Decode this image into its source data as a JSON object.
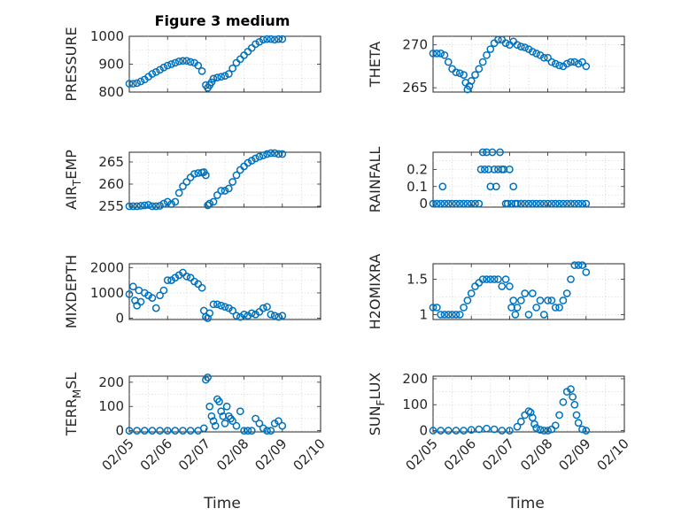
{
  "chart_data": [
    {
      "type": "scatter",
      "title": "Figure 3 medium",
      "ylabel_main": "PRESSURE",
      "ylabel_sub": "",
      "xlabel": "",
      "ylim": [
        800,
        1000
      ],
      "yticks": [
        800,
        900,
        1000
      ],
      "ytick_labels": [
        "800",
        "900",
        "1000"
      ],
      "xlim": [
        0,
        5
      ],
      "x": [
        0,
        0.1,
        0.2,
        0.3,
        0.4,
        0.5,
        0.6,
        0.7,
        0.8,
        0.9,
        1.0,
        1.1,
        1.2,
        1.3,
        1.4,
        1.5,
        1.6,
        1.7,
        1.8,
        1.9,
        2.0,
        2.05,
        2.1,
        2.15,
        2.2,
        2.3,
        2.4,
        2.5,
        2.6,
        2.7,
        2.8,
        2.9,
        3.0,
        3.1,
        3.2,
        3.3,
        3.4,
        3.5,
        3.6,
        3.7,
        3.8,
        3.9,
        4.0
      ],
      "y": [
        830,
        830,
        832,
        838,
        845,
        855,
        865,
        872,
        880,
        888,
        895,
        900,
        905,
        910,
        912,
        912,
        908,
        905,
        895,
        875,
        825,
        815,
        825,
        835,
        848,
        852,
        855,
        858,
        865,
        885,
        905,
        918,
        932,
        945,
        958,
        972,
        980,
        988,
        990,
        990,
        988,
        990,
        990
      ],
      "series": [
        {
          "values": []
        }
      ]
    },
    {
      "type": "scatter",
      "title": "",
      "ylabel_main": "THETA",
      "ylabel_sub": "",
      "xlabel": "",
      "ylim": [
        264.5,
        271
      ],
      "yticks": [
        265,
        270
      ],
      "ytick_labels": [
        "265",
        "270"
      ],
      "xlim": [
        0,
        5
      ],
      "x": [
        0,
        0.1,
        0.2,
        0.3,
        0.4,
        0.5,
        0.6,
        0.7,
        0.8,
        0.85,
        0.9,
        0.95,
        1.0,
        1.1,
        1.2,
        1.3,
        1.4,
        1.5,
        1.6,
        1.7,
        1.8,
        1.9,
        2.0,
        2.1,
        2.2,
        2.3,
        2.4,
        2.5,
        2.6,
        2.7,
        2.8,
        2.9,
        3.0,
        3.1,
        3.2,
        3.3,
        3.4,
        3.5,
        3.6,
        3.7,
        3.8,
        3.9,
        4.0
      ],
      "y": [
        269,
        269,
        269,
        268.8,
        268,
        267.2,
        266.8,
        266.7,
        266.5,
        265.6,
        264.8,
        265.2,
        265.8,
        266.5,
        267.2,
        268,
        268.8,
        269.5,
        270.2,
        270.6,
        270.6,
        270.2,
        270,
        270.4,
        270,
        269.8,
        269.7,
        269.5,
        269.2,
        269,
        268.8,
        268.5,
        268.5,
        268,
        267.8,
        267.6,
        267.5,
        267.8,
        268,
        268,
        267.8,
        268,
        267.5
      ],
      "series": [
        {
          "values": []
        }
      ]
    },
    {
      "type": "scatter",
      "title": "",
      "ylabel_main": "AIR",
      "ylabel_sub": "T",
      "ylabel_tail": "EMP",
      "xlabel": "",
      "ylim": [
        254.8,
        267.2
      ],
      "yticks": [
        255,
        260,
        265
      ],
      "ytick_labels": [
        "255",
        "260",
        "265"
      ],
      "xlim": [
        0,
        5
      ],
      "x": [
        0,
        0.1,
        0.2,
        0.3,
        0.4,
        0.5,
        0.6,
        0.7,
        0.8,
        0.9,
        1.0,
        1.1,
        1.2,
        1.3,
        1.4,
        1.5,
        1.6,
        1.7,
        1.8,
        1.9,
        1.95,
        2.0,
        2.05,
        2.1,
        2.2,
        2.3,
        2.4,
        2.5,
        2.6,
        2.7,
        2.8,
        2.9,
        3.0,
        3.1,
        3.2,
        3.3,
        3.4,
        3.5,
        3.6,
        3.7,
        3.8,
        3.9,
        4.0
      ],
      "y": [
        255,
        255,
        255,
        255.1,
        255.2,
        255.3,
        255,
        255,
        255.1,
        255.6,
        256,
        255.5,
        256,
        258,
        259.5,
        260.5,
        261.5,
        262.3,
        262.5,
        262.6,
        262.7,
        262,
        255.2,
        255.6,
        256,
        257.5,
        258.5,
        258.5,
        259,
        260.5,
        262,
        263.2,
        264,
        264.8,
        265.3,
        265.8,
        266.2,
        266.5,
        266.8,
        267,
        267,
        266.8,
        266.8
      ],
      "series": [
        {
          "values": []
        }
      ]
    },
    {
      "type": "scatter",
      "title": "",
      "ylabel_main": "RAINFALL",
      "ylabel_sub": "",
      "xlabel": "",
      "ylim": [
        -0.02,
        0.3
      ],
      "yticks": [
        0,
        0.1,
        0.2
      ],
      "ytick_labels": [
        "0",
        "0.1",
        "0.2"
      ],
      "xlim": [
        0,
        5
      ],
      "x": [
        0,
        0.1,
        0.2,
        0.25,
        0.3,
        0.4,
        0.5,
        0.6,
        0.7,
        0.8,
        0.9,
        1.0,
        1.1,
        1.2,
        1.25,
        1.3,
        1.35,
        1.4,
        1.45,
        1.5,
        1.55,
        1.6,
        1.65,
        1.7,
        1.75,
        1.8,
        1.85,
        1.9,
        1.95,
        2.0,
        2.05,
        2.1,
        2.15,
        2.2,
        2.3,
        2.4,
        2.5,
        2.6,
        2.7,
        2.8,
        2.9,
        3.0,
        3.1,
        3.2,
        3.3,
        3.4,
        3.5,
        3.6,
        3.7,
        3.8,
        3.9,
        4.0
      ],
      "y": [
        0,
        0,
        0,
        0.1,
        0,
        0,
        0,
        0,
        0,
        0,
        0,
        0,
        0,
        0,
        0.2,
        0.3,
        0.2,
        0.3,
        0.2,
        0.1,
        0.3,
        0.2,
        0.1,
        0.2,
        0.3,
        0.2,
        0.2,
        0,
        0,
        0.2,
        0,
        0.1,
        0,
        0,
        0,
        0,
        0,
        0,
        0,
        0,
        0,
        0,
        0,
        0,
        0,
        0,
        0,
        0,
        0,
        0,
        0,
        0
      ],
      "series": [
        {
          "values": []
        }
      ]
    },
    {
      "type": "scatter",
      "title": "",
      "ylabel_main": "MIXDEPTH",
      "ylabel_sub": "",
      "xlabel": "",
      "ylim": [
        -50,
        2150
      ],
      "yticks": [
        0,
        1000,
        2000
      ],
      "ytick_labels": [
        "0",
        "1000",
        "2000"
      ],
      "xlim": [
        0,
        5
      ],
      "x": [
        0,
        0.1,
        0.15,
        0.2,
        0.25,
        0.3,
        0.4,
        0.5,
        0.6,
        0.7,
        0.8,
        0.9,
        1.0,
        1.1,
        1.2,
        1.3,
        1.4,
        1.5,
        1.6,
        1.7,
        1.8,
        1.9,
        1.95,
        2.0,
        2.05,
        2.1,
        2.2,
        2.3,
        2.4,
        2.5,
        2.6,
        2.7,
        2.8,
        2.9,
        3.0,
        3.1,
        3.2,
        3.3,
        3.4,
        3.5,
        3.6,
        3.7,
        3.8,
        3.9,
        4.0
      ],
      "y": [
        950,
        1250,
        700,
        500,
        1100,
        650,
        1000,
        900,
        800,
        400,
        900,
        1100,
        1500,
        1500,
        1600,
        1700,
        1800,
        1650,
        1600,
        1450,
        1350,
        1200,
        300,
        50,
        0,
        200,
        550,
        550,
        500,
        450,
        400,
        300,
        100,
        50,
        150,
        100,
        200,
        150,
        250,
        400,
        450,
        150,
        100,
        50,
        100
      ],
      "series": [
        {
          "values": []
        }
      ]
    },
    {
      "type": "scatter",
      "title": "",
      "ylabel_main": "H2OMIXRA",
      "ylabel_sub": "",
      "xlabel": "",
      "ylim": [
        0.93,
        1.72
      ],
      "yticks": [
        1,
        1.5
      ],
      "ytick_labels": [
        "1",
        "1.5"
      ],
      "xlim": [
        0,
        5
      ],
      "x": [
        0,
        0.1,
        0.2,
        0.3,
        0.4,
        0.5,
        0.6,
        0.7,
        0.8,
        0.9,
        1.0,
        1.1,
        1.2,
        1.3,
        1.4,
        1.5,
        1.6,
        1.7,
        1.8,
        1.9,
        2.0,
        2.05,
        2.1,
        2.15,
        2.2,
        2.3,
        2.4,
        2.5,
        2.6,
        2.7,
        2.8,
        2.9,
        3.0,
        3.1,
        3.2,
        3.3,
        3.4,
        3.5,
        3.6,
        3.7,
        3.8,
        3.9,
        4.0
      ],
      "y": [
        1.1,
        1.1,
        1.0,
        1.0,
        1.0,
        1.0,
        1.0,
        1.0,
        1.1,
        1.2,
        1.3,
        1.4,
        1.45,
        1.5,
        1.5,
        1.5,
        1.5,
        1.5,
        1.4,
        1.5,
        1.4,
        1.1,
        1.2,
        1.0,
        1.1,
        1.2,
        1.3,
        1.0,
        1.3,
        1.1,
        1.2,
        1.0,
        1.2,
        1.2,
        1.1,
        1.1,
        1.2,
        1.3,
        1.5,
        1.7,
        1.7,
        1.7,
        1.6
      ],
      "series": [
        {
          "values": []
        }
      ]
    },
    {
      "type": "scatter",
      "title": "",
      "ylabel_main": "TERR",
      "ylabel_sub": "M",
      "ylabel_tail": "SL",
      "xlabel": "",
      "ylim": [
        -5,
        225
      ],
      "yticks": [
        0,
        100,
        200
      ],
      "ytick_labels": [
        "0",
        "100",
        "200"
      ],
      "xlim": [
        0,
        5
      ],
      "x_tick_labels": [
        "02/05",
        "02/06",
        "02/07",
        "02/08",
        "02/09",
        "02/10"
      ],
      "x": [
        0,
        0.2,
        0.4,
        0.6,
        0.8,
        1.0,
        1.2,
        1.4,
        1.6,
        1.8,
        1.95,
        2.0,
        2.05,
        2.1,
        2.15,
        2.2,
        2.25,
        2.3,
        2.35,
        2.4,
        2.45,
        2.5,
        2.55,
        2.6,
        2.65,
        2.7,
        2.8,
        2.9,
        3.0,
        3.1,
        3.2,
        3.3,
        3.4,
        3.5,
        3.6,
        3.7,
        3.8,
        3.9,
        4.0
      ],
      "y": [
        0,
        0,
        0,
        0,
        0,
        0,
        0,
        0,
        0,
        0,
        10,
        210,
        220,
        100,
        60,
        40,
        20,
        130,
        120,
        80,
        60,
        30,
        100,
        60,
        50,
        40,
        20,
        80,
        0,
        0,
        0,
        50,
        30,
        10,
        0,
        0,
        30,
        40,
        20
      ],
      "series": [
        {
          "values": []
        }
      ]
    },
    {
      "type": "scatter",
      "title": "",
      "ylabel_main": "SUN",
      "ylabel_sub": "F",
      "ylabel_tail": "LUX",
      "xlabel": "",
      "ylim": [
        -5,
        210
      ],
      "yticks": [
        0,
        100,
        200
      ],
      "ytick_labels": [
        "0",
        "100",
        "200"
      ],
      "xlim": [
        0,
        5
      ],
      "x_tick_labels": [
        "02/05",
        "02/06",
        "02/07",
        "02/08",
        "02/09",
        "02/10"
      ],
      "x": [
        0,
        0.2,
        0.4,
        0.6,
        0.8,
        1.0,
        1.2,
        1.4,
        1.6,
        1.8,
        2.0,
        2.2,
        2.3,
        2.4,
        2.5,
        2.55,
        2.6,
        2.65,
        2.7,
        2.8,
        2.9,
        3.0,
        3.1,
        3.2,
        3.3,
        3.4,
        3.5,
        3.6,
        3.65,
        3.7,
        3.75,
        3.8,
        3.9,
        4.0
      ],
      "y": [
        0,
        0,
        0,
        0,
        0,
        3,
        5,
        8,
        5,
        0,
        0,
        15,
        35,
        60,
        75,
        70,
        50,
        25,
        10,
        3,
        0,
        0,
        5,
        20,
        60,
        110,
        150,
        160,
        130,
        100,
        60,
        30,
        5,
        0
      ],
      "series": [
        {
          "values": []
        }
      ]
    }
  ],
  "xaxis_shared": {
    "tick_labels": [
      "02/05",
      "02/06",
      "02/07",
      "02/08",
      "02/09",
      "02/10"
    ],
    "xlabel_left": "Time",
    "xlabel_right": "Time"
  },
  "colors": {
    "marker": "#0072BD",
    "axis": "#262626",
    "grid": "#c8c8c8"
  }
}
